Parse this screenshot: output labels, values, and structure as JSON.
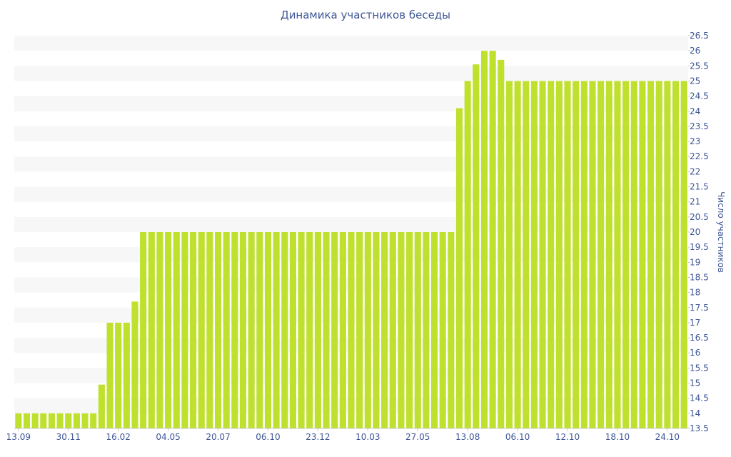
{
  "chart_data": {
    "type": "bar",
    "title": "Динамика участников беседы",
    "xlabel": "",
    "ylabel": "Число участников",
    "ylim": [
      13.5,
      26.5
    ],
    "ytick_step": 0.5,
    "yaxis_side": "right",
    "grid": "alternating horizontal bands",
    "legend": "none",
    "bar_color": "#bfe02c",
    "band_color": "#f7f7f7",
    "text_color": "#3f5696",
    "x_tick_labels": [
      "13.09",
      "30.11",
      "16.02",
      "04.05",
      "20.07",
      "06.10",
      "23.12",
      "10.03",
      "27.05",
      "13.08",
      "06.10",
      "12.10",
      "18.10",
      "24.10"
    ],
    "values": [
      14,
      14,
      14,
      14,
      14,
      14,
      14,
      14,
      14,
      14,
      14.95,
      17,
      17,
      17,
      17.7,
      20,
      20,
      20,
      20,
      20,
      20,
      20,
      20,
      20,
      20,
      20,
      20,
      20,
      20,
      20,
      20,
      20,
      20,
      20,
      20,
      20,
      20,
      20,
      20,
      20,
      20,
      20,
      20,
      20,
      20,
      20,
      20,
      20,
      20,
      20,
      20,
      20,
      20,
      24.1,
      25,
      25.55,
      26,
      26,
      25.7,
      25,
      25,
      25,
      25,
      25,
      25,
      25,
      25,
      25,
      25,
      25,
      25,
      25,
      25,
      25,
      25,
      25,
      25,
      25,
      25,
      25,
      25
    ]
  }
}
